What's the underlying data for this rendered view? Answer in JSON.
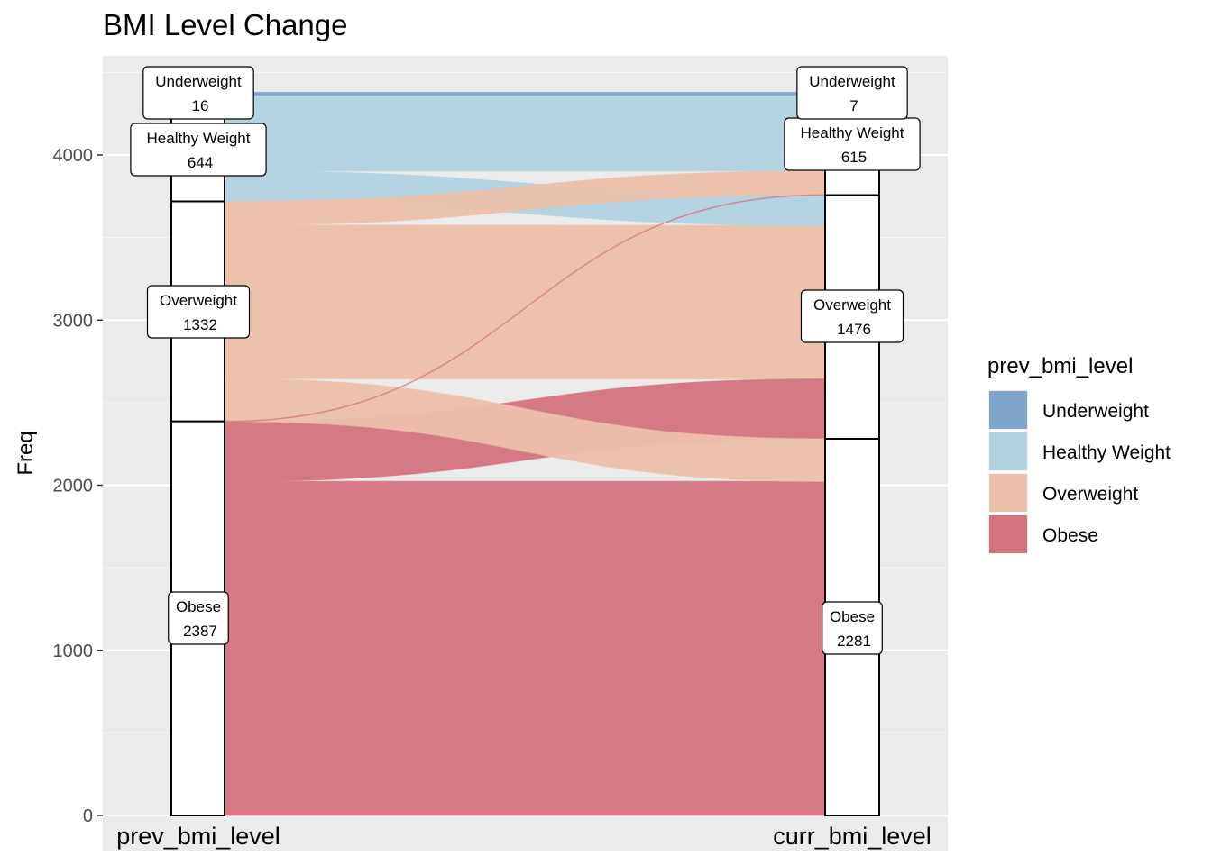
{
  "chart_data": {
    "type": "alluvial",
    "title": "BMI Level Change",
    "ylabel": "Freq",
    "xlabel": "",
    "ylim": [
      0,
      4500
    ],
    "yticks": [
      0,
      1000,
      2000,
      3000,
      4000
    ],
    "axes": [
      "prev_bmi_level",
      "curr_bmi_level"
    ],
    "categories": [
      "Underweight",
      "Healthy Weight",
      "Overweight",
      "Obese"
    ],
    "colors": {
      "Underweight": "#7fa5cb",
      "Healthy Weight": "#b3d2e0",
      "Overweight": "#ecc0ac",
      "Obese": "#d3737f"
    },
    "prev_counts": [
      {
        "label": "Underweight",
        "value": 16
      },
      {
        "label": "Healthy Weight",
        "value": 644
      },
      {
        "label": "Overweight",
        "value": 1332
      },
      {
        "label": "Obese",
        "value": 2387
      }
    ],
    "curr_counts": [
      {
        "label": "Underweight",
        "value": 7
      },
      {
        "label": "Healthy Weight",
        "value": 615
      },
      {
        "label": "Overweight",
        "value": 1476
      },
      {
        "label": "Obese",
        "value": 2281
      }
    ],
    "flows": [
      {
        "from": "Underweight",
        "to": "Underweight",
        "value": 7
      },
      {
        "from": "Underweight",
        "to": "Healthy Weight",
        "value": 9
      },
      {
        "from": "Healthy Weight",
        "to": "Healthy Weight",
        "value": 460
      },
      {
        "from": "Healthy Weight",
        "to": "Overweight",
        "value": 184
      },
      {
        "from": "Overweight",
        "to": "Healthy Weight",
        "value": 144
      },
      {
        "from": "Overweight",
        "to": "Overweight",
        "value": 930
      },
      {
        "from": "Overweight",
        "to": "Obese",
        "value": 258
      },
      {
        "from": "Obese",
        "to": "Healthy Weight",
        "value": 2
      },
      {
        "from": "Obese",
        "to": "Overweight",
        "value": 362
      },
      {
        "from": "Obese",
        "to": "Obese",
        "value": 2023
      }
    ],
    "legend": {
      "title": "prev_bmi_level",
      "entries": [
        "Underweight",
        "Healthy Weight",
        "Overweight",
        "Obese"
      ],
      "placement": "right"
    }
  }
}
